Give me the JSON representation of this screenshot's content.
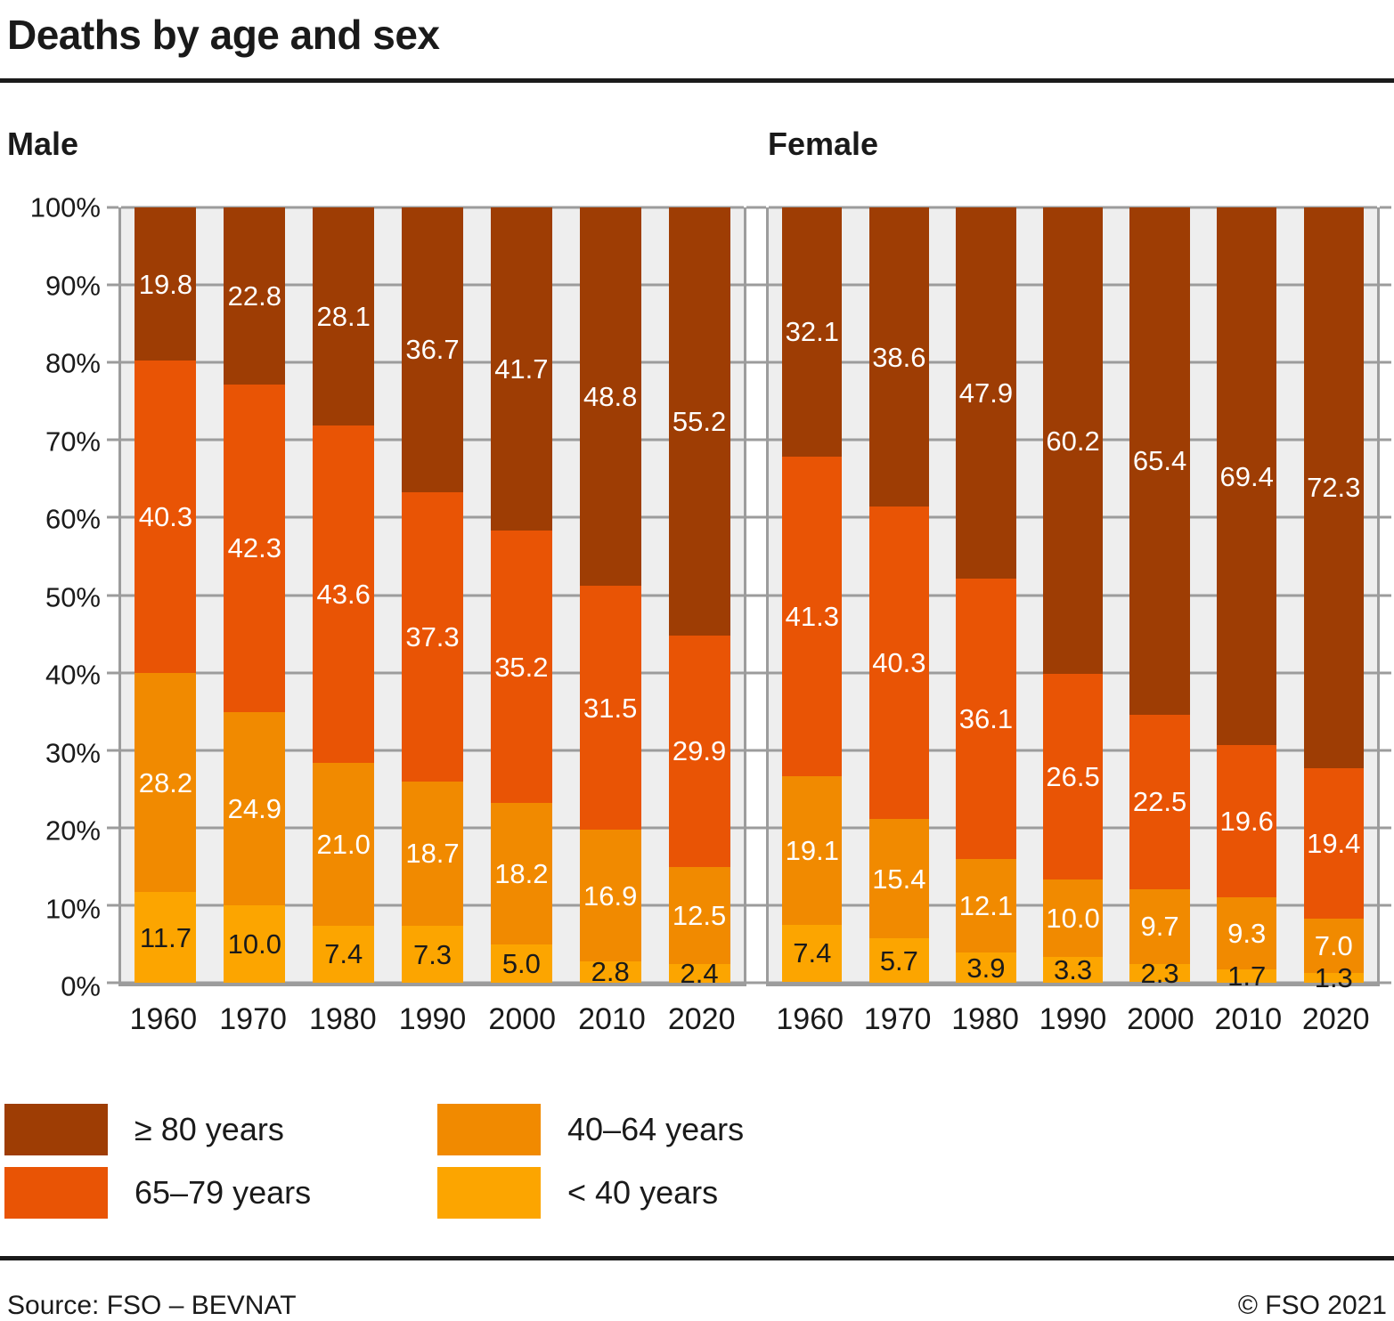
{
  "title": "Deaths by age and sex",
  "colors": {
    "age_80_plus": "#9e3d04",
    "age_65_79": "#e95405",
    "age_40_64": "#f18a00",
    "age_under_40": "#fca500",
    "plot_background": "#eeeeee",
    "grid": "#9c9c9c",
    "text": "#1a1a1a",
    "label_light": "#ffffff",
    "label_dark": "#1a1a1a"
  },
  "chart_data": {
    "type": "bar",
    "stacked": true,
    "unit": "%",
    "grid": true,
    "ylim": [
      0,
      100
    ],
    "y_ticks": [
      "100%",
      "90%",
      "80%",
      "70%",
      "60%",
      "50%",
      "40%",
      "30%",
      "20%",
      "10%",
      "0%"
    ],
    "categories": [
      "1960",
      "1970",
      "1980",
      "1990",
      "2000",
      "2010",
      "2020"
    ],
    "legend_position": "bottom-left",
    "panels": [
      {
        "title": "Male",
        "series": [
          {
            "name": "≥ 80 years",
            "color": "#9e3d04",
            "label_color": "#ffffff",
            "values": [
              19.8,
              22.8,
              28.1,
              36.7,
              41.7,
              48.8,
              55.2
            ]
          },
          {
            "name": "65–79 years",
            "color": "#e95405",
            "label_color": "#ffffff",
            "values": [
              40.3,
              42.3,
              43.6,
              37.3,
              35.2,
              31.5,
              29.9
            ]
          },
          {
            "name": "40–64 years",
            "color": "#f18a00",
            "label_color": "#ffffff",
            "values": [
              28.2,
              24.9,
              21.0,
              18.7,
              18.2,
              16.9,
              12.5
            ]
          },
          {
            "name": "< 40 years",
            "color": "#fca500",
            "label_color": "#1a1a1a",
            "values": [
              11.7,
              10.0,
              7.4,
              7.3,
              5.0,
              2.8,
              2.4
            ]
          }
        ]
      },
      {
        "title": "Female",
        "series": [
          {
            "name": "≥ 80 years",
            "color": "#9e3d04",
            "label_color": "#ffffff",
            "values": [
              32.1,
              38.6,
              47.9,
              60.2,
              65.4,
              69.4,
              72.3
            ]
          },
          {
            "name": "65–79 years",
            "color": "#e95405",
            "label_color": "#ffffff",
            "values": [
              41.3,
              40.3,
              36.1,
              26.5,
              22.5,
              19.6,
              19.4
            ]
          },
          {
            "name": "40–64 years",
            "color": "#f18a00",
            "label_color": "#ffffff",
            "values": [
              19.1,
              15.4,
              12.1,
              10.0,
              9.7,
              9.3,
              7.0
            ]
          },
          {
            "name": "< 40 years",
            "color": "#fca500",
            "label_color": "#1a1a1a",
            "values": [
              7.4,
              5.7,
              3.9,
              3.3,
              2.3,
              1.7,
              1.3
            ]
          }
        ]
      }
    ]
  },
  "legend": {
    "items": [
      {
        "label": "≥ 80 years",
        "color": "#9e3d04"
      },
      {
        "label": "65–79 years",
        "color": "#e95405"
      },
      {
        "label": "40–64 years",
        "color": "#f18a00"
      },
      {
        "label": "< 40 years",
        "color": "#fca500"
      }
    ]
  },
  "footer": {
    "source": "Source: FSO – BEVNAT",
    "copyright": "© FSO 2021"
  }
}
